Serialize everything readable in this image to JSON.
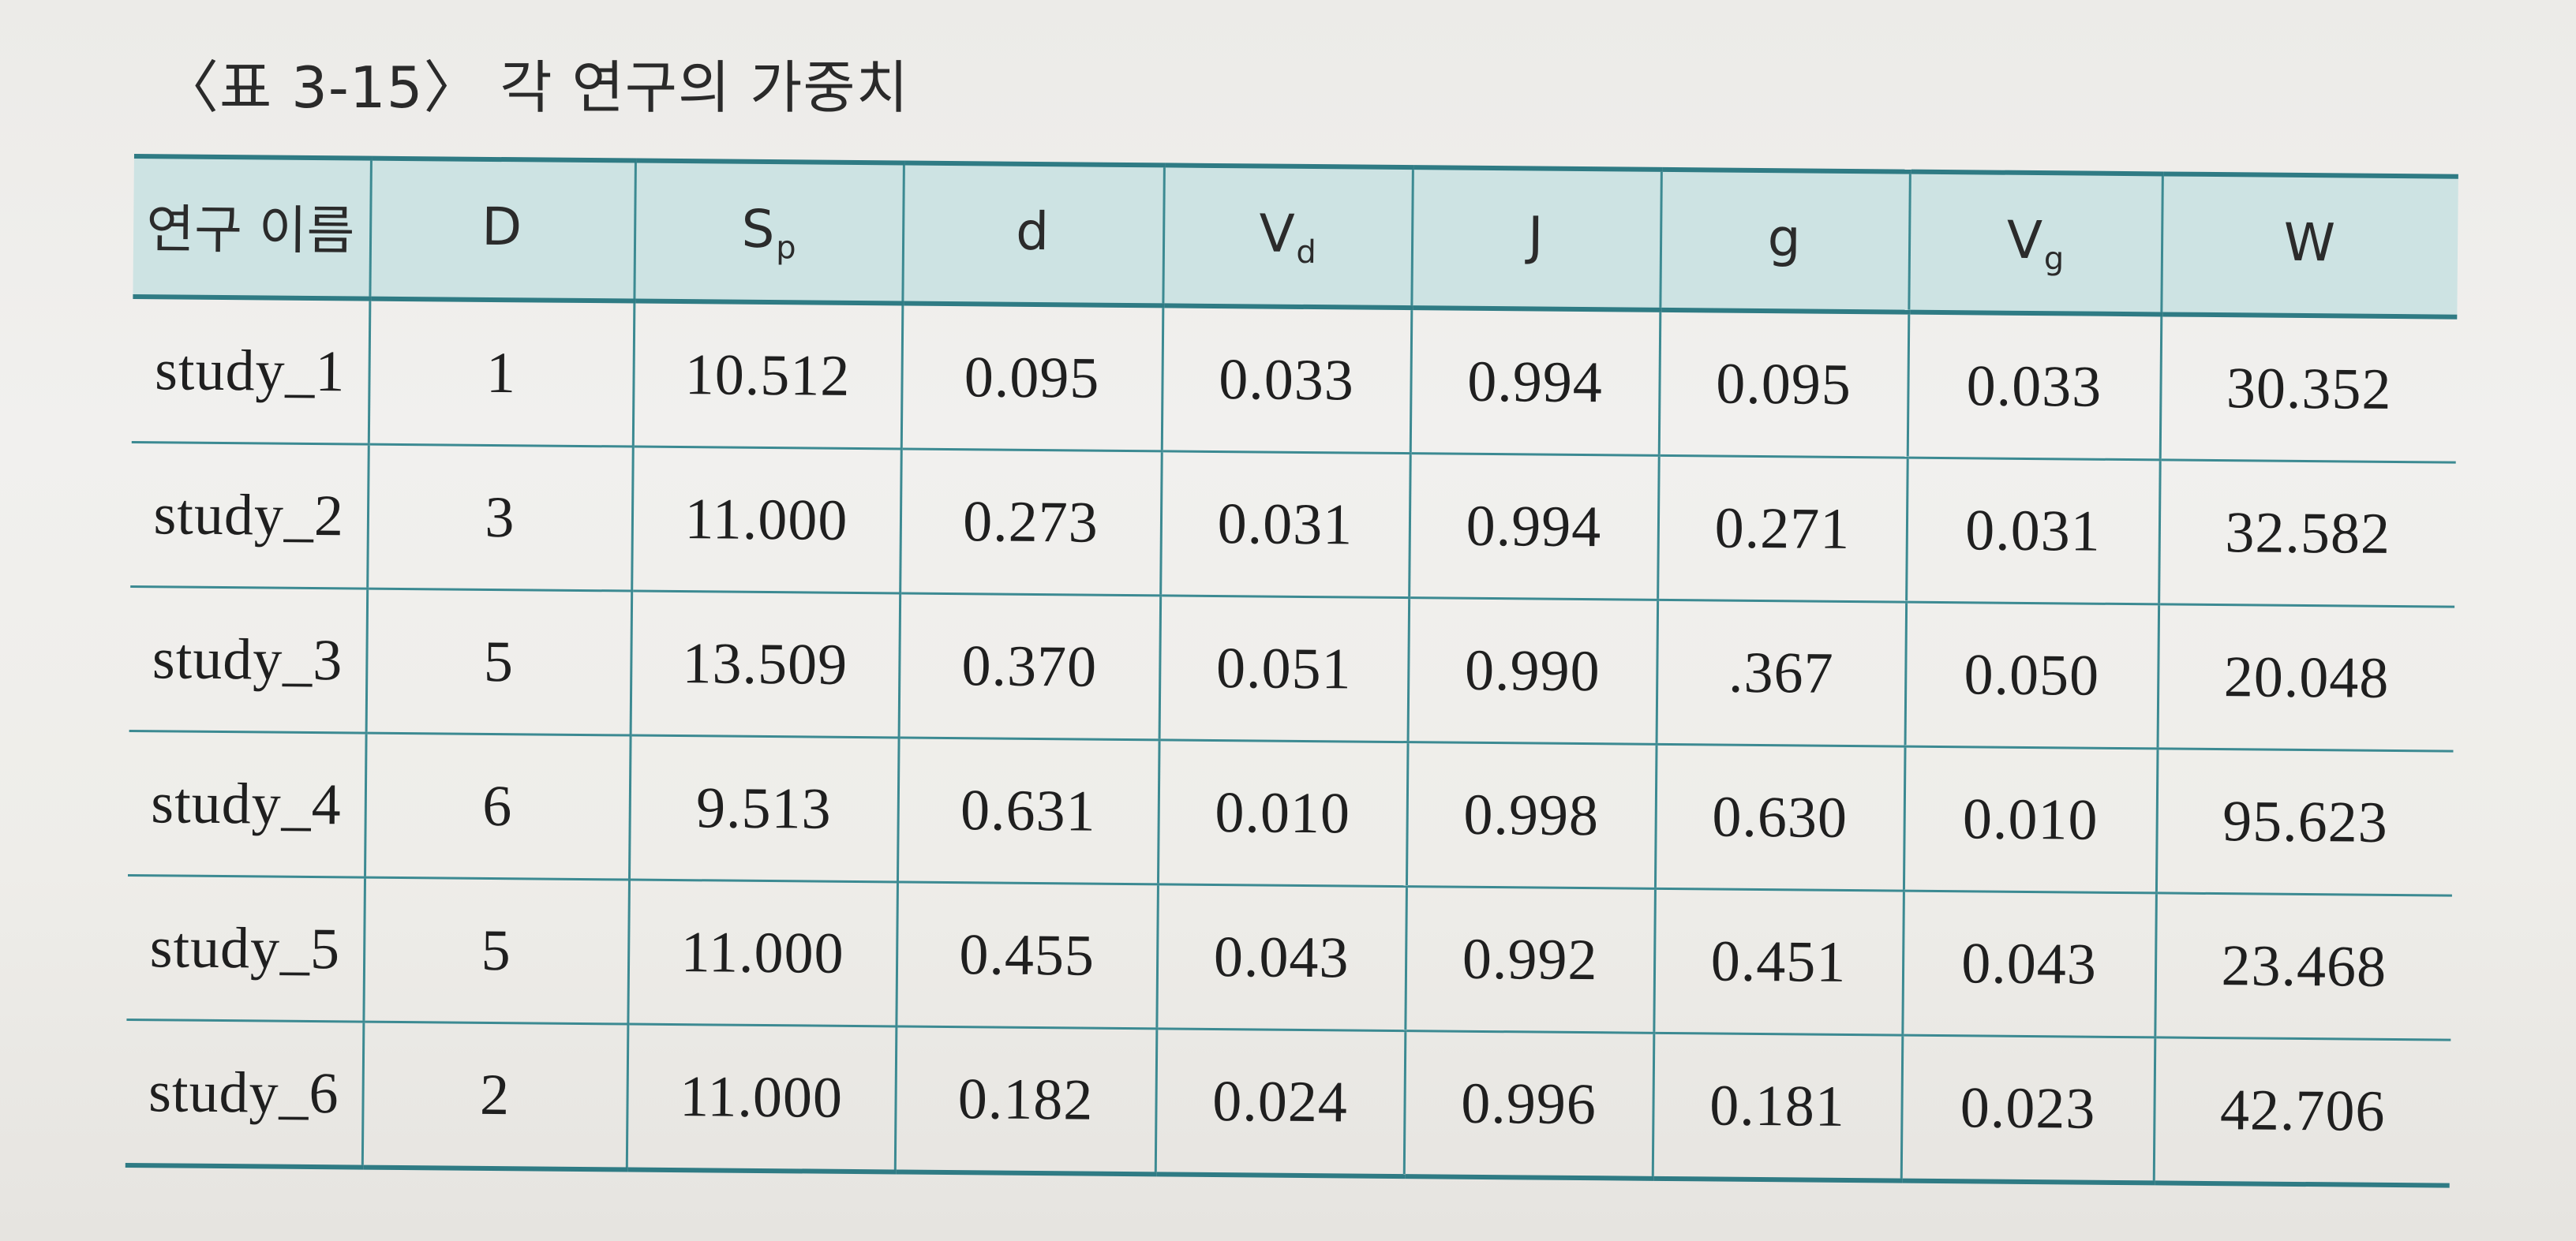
{
  "caption": "〈표 3-15〉 각 연구의 가중치",
  "table": {
    "headers": [
      {
        "main": "연구 이름",
        "sub": ""
      },
      {
        "main": "D",
        "sub": ""
      },
      {
        "main": "S",
        "sub": "p"
      },
      {
        "main": "d",
        "sub": ""
      },
      {
        "main": "V",
        "sub": "d"
      },
      {
        "main": "J",
        "sub": ""
      },
      {
        "main": "g",
        "sub": ""
      },
      {
        "main": "V",
        "sub": "g"
      },
      {
        "main": "W",
        "sub": ""
      }
    ],
    "rows": [
      [
        "study_1",
        "1",
        "10.512",
        "0.095",
        "0.033",
        "0.994",
        "0.095",
        "0.033",
        "30.352"
      ],
      [
        "study_2",
        "3",
        "11.000",
        "0.273",
        "0.031",
        "0.994",
        "0.271",
        "0.031",
        "32.582"
      ],
      [
        "study_3",
        "5",
        "13.509",
        "0.370",
        "0.051",
        "0.990",
        ".367",
        "0.050",
        "20.048"
      ],
      [
        "study_4",
        "6",
        "9.513",
        "0.631",
        "0.010",
        "0.998",
        "0.630",
        "0.010",
        "95.623"
      ],
      [
        "study_5",
        "5",
        "11.000",
        "0.455",
        "0.043",
        "0.992",
        "0.451",
        "0.043",
        "23.468"
      ],
      [
        "study_6",
        "2",
        "11.000",
        "0.182",
        "0.024",
        "0.996",
        "0.181",
        "0.023",
        "42.706"
      ]
    ]
  },
  "colors": {
    "header_bg": "#cde3e3",
    "rule": "#2f7b84",
    "page_bg": "#f1f0ee"
  }
}
